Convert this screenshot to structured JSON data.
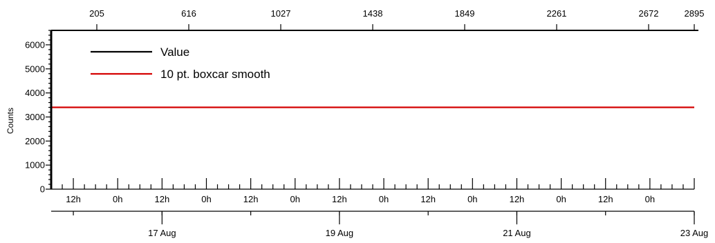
{
  "chart_data": {
    "type": "line",
    "title": "",
    "ylabel": "Counts",
    "ylim": [
      0,
      6600
    ],
    "y_ticks": [
      0,
      1000,
      2000,
      3000,
      4000,
      5000,
      6000
    ],
    "x_range": [
      "2024-08-15T18:00",
      "2024-08-23T00:00"
    ],
    "x_top_ticks": [
      "205",
      "616",
      "1027",
      "1438",
      "1849",
      "2261",
      "2672",
      "2895"
    ],
    "x_hour_ticks": [
      "12h",
      "0h",
      "12h",
      "0h",
      "12h",
      "0h",
      "12h",
      "0h",
      "12h",
      "0h",
      "12h",
      "0h",
      "12h",
      "0h"
    ],
    "x_date_ticks": [
      "17 Aug",
      "19 Aug",
      "21 Aug",
      "23 Aug"
    ],
    "legend_position": "top-left",
    "grid": false,
    "series": [
      {
        "name": "Value",
        "color": "#000000",
        "x": [],
        "y": []
      },
      {
        "name": "10 pt. boxcar smooth",
        "color": "#d40000",
        "x": [
          "2024-08-15T18:00",
          "2024-08-23T00:00"
        ],
        "y": [
          3400,
          3400
        ]
      }
    ]
  }
}
